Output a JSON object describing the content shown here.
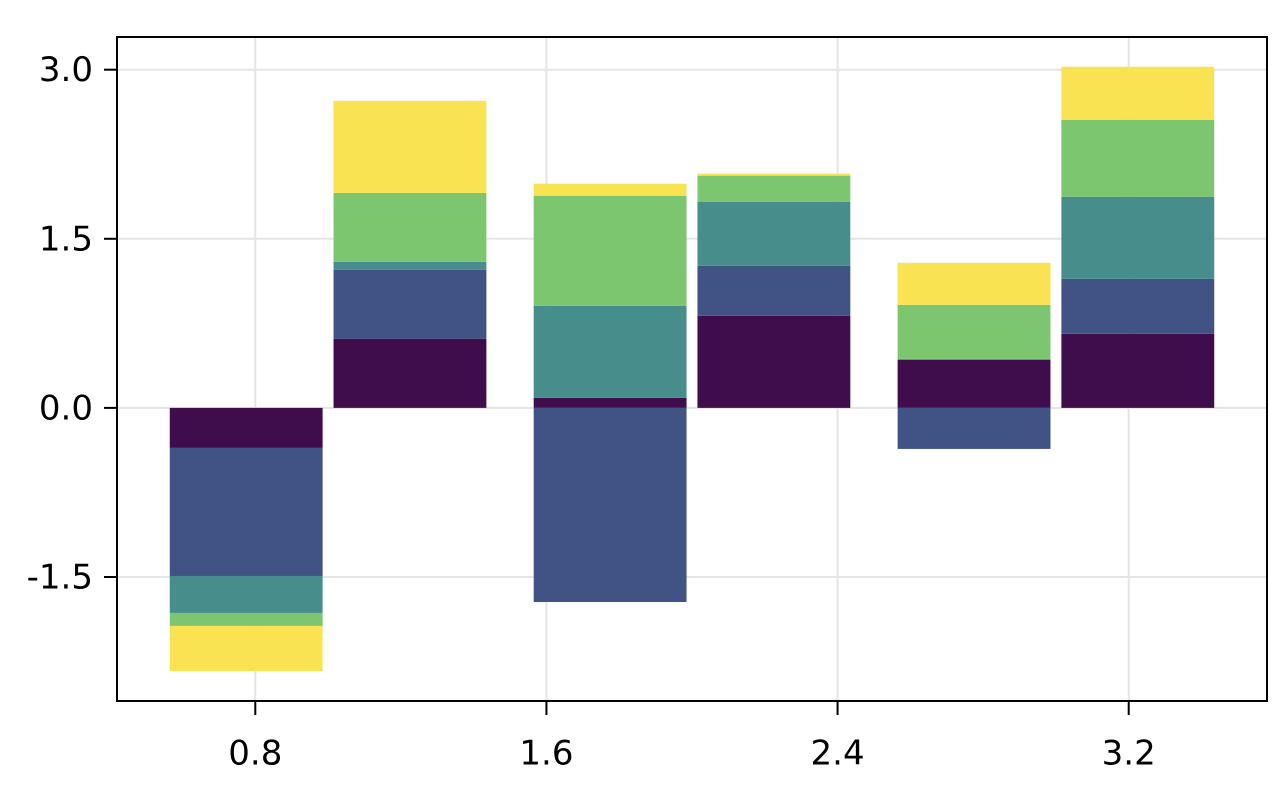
{
  "chart_data": {
    "type": "stacked_bar",
    "x": [
      0.775,
      1.225,
      1.775,
      2.225,
      2.775,
      3.225
    ],
    "series": [
      {
        "color": "#3f0d4c",
        "values": [
          -0.355,
          0.612,
          0.089,
          0.817,
          0.426,
          0.657
        ]
      },
      {
        "color": "#415285",
        "values": [
          -1.136,
          0.612,
          -1.722,
          0.444,
          -0.364,
          0.488
        ]
      },
      {
        "color": "#468d8b",
        "values": [
          -0.328,
          0.071,
          0.817,
          0.568,
          0.009,
          0.728
        ]
      },
      {
        "color": "#7bc66f",
        "values": [
          -0.115,
          0.612,
          0.976,
          0.231,
          0.479,
          0.683
        ]
      },
      {
        "color": "#f9e353",
        "values": [
          -0.4,
          0.817,
          0.107,
          0.018,
          0.373,
          0.47
        ]
      }
    ],
    "xlim": [
      0.42,
      3.58
    ],
    "ylim": [
      -2.6,
      3.29
    ],
    "xticks": [
      0.8,
      1.6,
      2.4,
      3.2
    ],
    "yticks": [
      {
        "value": 3.0,
        "label": "3.0"
      },
      {
        "value": 1.5,
        "label": "1.5"
      },
      {
        "value": 0,
        "label": "0.0"
      },
      {
        "value": -1.5,
        "label": "-1.5"
      }
    ],
    "grid": true
  }
}
